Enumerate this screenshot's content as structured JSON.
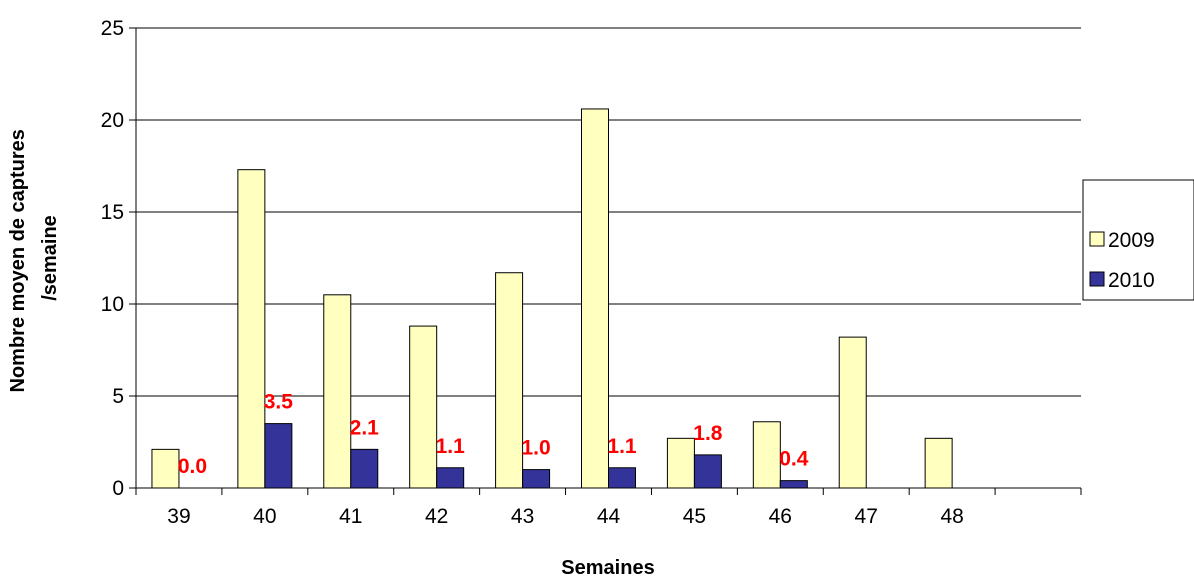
{
  "chart_data": {
    "type": "bar",
    "title": "",
    "xlabel": "Semaines",
    "ylabel": "Nombre moyen de captures /semaine",
    "ylabel_lines": [
      "Nombre moyen de captures",
      "/semaine"
    ],
    "categories": [
      "39",
      "40",
      "41",
      "42",
      "43",
      "44",
      "45",
      "46",
      "47",
      "48",
      ""
    ],
    "ylim": [
      0,
      25
    ],
    "yticks": [
      "0",
      "5",
      "10",
      "15",
      "20",
      "25"
    ],
    "grid": true,
    "legend_position": "right",
    "series": [
      {
        "name": "2009",
        "color": "#ffffc0",
        "values": [
          2.1,
          17.3,
          10.5,
          8.8,
          11.7,
          20.6,
          2.7,
          3.6,
          8.2,
          2.7,
          null
        ]
      },
      {
        "name": "2010",
        "color": "#333399",
        "values": [
          0.0,
          3.5,
          2.1,
          1.1,
          1.0,
          1.1,
          1.8,
          0.4,
          null,
          null,
          null
        ],
        "data_labels": [
          "0.0",
          "3.5",
          "2.1",
          "1.1",
          "1.0",
          "1.1",
          "1.8",
          "0.4",
          "",
          "",
          ""
        ]
      }
    ]
  }
}
